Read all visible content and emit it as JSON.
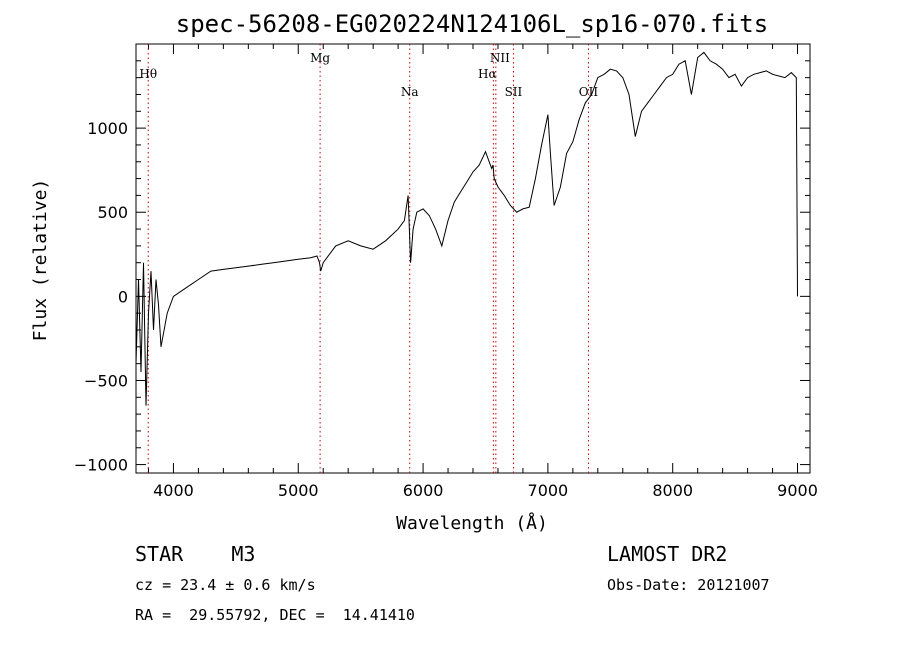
{
  "chart_data": {
    "type": "line",
    "title": "spec-56208-EG020224N124106L_sp16-070.fits",
    "xlabel": "Wavelength (Å)",
    "ylabel": "Flux (relative)",
    "xlim": [
      3700,
      9100
    ],
    "ylim": [
      -1050,
      1500
    ],
    "x_ticks": [
      4000,
      5000,
      6000,
      7000,
      8000,
      9000
    ],
    "y_ticks": [
      -1000,
      -500,
      0,
      500,
      1000
    ],
    "series": [
      {
        "x": [
          3700,
          3720,
          3740,
          3760,
          3780,
          3800,
          3820,
          3840,
          3860,
          3880,
          3900,
          3950,
          4000,
          4100,
          4200,
          4300,
          4400,
          4500,
          4600,
          4700,
          4800,
          4900,
          5000,
          5100,
          5150,
          5170,
          5180,
          5200,
          5300,
          5400,
          5500,
          5600,
          5700,
          5800,
          5850,
          5880,
          5900,
          5920,
          5950,
          6000,
          6050,
          6100,
          6150,
          6200,
          6250,
          6300,
          6350,
          6400,
          6450,
          6500,
          6530,
          6550,
          6560,
          6570,
          6600,
          6650,
          6700,
          6750,
          6800,
          6850,
          6900,
          6950,
          7000,
          7020,
          7050,
          7100,
          7150,
          7200,
          7250,
          7300,
          7350,
          7400,
          7450,
          7500,
          7550,
          7600,
          7650,
          7700,
          7750,
          7800,
          7850,
          7900,
          7950,
          8000,
          8050,
          8100,
          8150,
          8200,
          8250,
          8300,
          8350,
          8400,
          8450,
          8500,
          8550,
          8600,
          8650,
          8700,
          8750,
          8800,
          8850,
          8900,
          8950,
          8990,
          9000
        ],
        "y": [
          -400,
          100,
          -450,
          200,
          -650,
          -100,
          150,
          -200,
          100,
          -50,
          -300,
          -100,
          0,
          50,
          100,
          150,
          160,
          170,
          180,
          190,
          200,
          210,
          220,
          230,
          240,
          200,
          150,
          200,
          300,
          330,
          300,
          280,
          330,
          400,
          450,
          600,
          200,
          400,
          500,
          520,
          480,
          400,
          300,
          450,
          560,
          620,
          680,
          740,
          780,
          860,
          800,
          760,
          780,
          700,
          650,
          600,
          540,
          500,
          520,
          530,
          700,
          900,
          1080,
          850,
          540,
          650,
          850,
          920,
          1050,
          1150,
          1200,
          1300,
          1320,
          1350,
          1340,
          1300,
          1200,
          950,
          1100,
          1150,
          1200,
          1250,
          1300,
          1320,
          1380,
          1400,
          1200,
          1420,
          1450,
          1400,
          1380,
          1350,
          1300,
          1320,
          1250,
          1300,
          1320,
          1330,
          1340,
          1320,
          1310,
          1300,
          1330,
          1300,
          0
        ],
        "color": "#000000"
      }
    ],
    "lines": [
      {
        "label": "Hθ",
        "x": 3798
      },
      {
        "label": "Mg",
        "x": 5175
      },
      {
        "label": "Na",
        "x": 5893
      },
      {
        "label": "NII",
        "x": 6583
      },
      {
        "label": "Hα",
        "x": 6563
      },
      {
        "label": "SII",
        "x": 6724
      },
      {
        "label": "OII",
        "x": 7325
      }
    ],
    "line_color": "#cc0000"
  },
  "info": {
    "class": "STAR    M3",
    "survey": "LAMOST DR2",
    "cz": "cz = 23.4 ± 0.6 km/s",
    "obs_date": "Obs-Date: 20121007",
    "coords": "RA =  29.55792, DEC =  14.41410"
  }
}
